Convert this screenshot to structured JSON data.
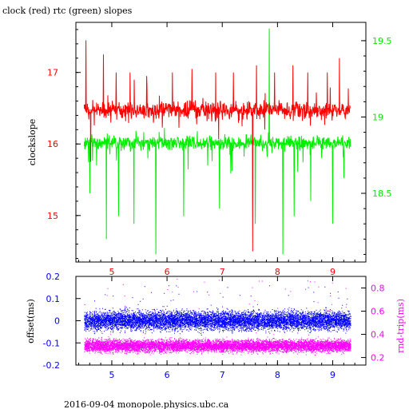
{
  "title": "clock (red) rtc (green) slopes",
  "footer": "2016-09-04 monopole.physics.ubc.ca",
  "colors": {
    "clock": "#ff0000",
    "rtc": "#00ee00",
    "offset": "#0000ff",
    "rndtrip": "#ff00ff",
    "axis": "#000000"
  },
  "chart_data": [
    {
      "type": "line",
      "title": "clock (red) rtc (green) slopes",
      "xlabel": "",
      "ylabel": "clockslope",
      "xlim": [
        4.35,
        9.6
      ],
      "xticks": [
        5,
        6,
        7,
        8,
        9
      ],
      "ylim_left": [
        14.35,
        17.7
      ],
      "yticks_left": [
        15,
        16,
        17
      ],
      "ylim_right": [
        18.05,
        19.62
      ],
      "yticks_right": [
        18.5,
        19,
        19.5
      ],
      "grid": false,
      "series": [
        {
          "name": "clock",
          "axis": "left",
          "x_range": [
            4.5,
            9.32
          ],
          "baseline": 16.47,
          "approx_band": [
            16.1,
            16.9
          ],
          "spikes": [
            {
              "x": 4.53,
              "y": 17.45
            },
            {
              "x": 4.62,
              "y": 15.75
            },
            {
              "x": 4.85,
              "y": 17.25
            },
            {
              "x": 5.08,
              "y": 17.0
            },
            {
              "x": 5.33,
              "y": 17.0
            },
            {
              "x": 5.63,
              "y": 16.95
            },
            {
              "x": 6.1,
              "y": 17.0
            },
            {
              "x": 6.45,
              "y": 17.05
            },
            {
              "x": 6.88,
              "y": 17.0
            },
            {
              "x": 7.2,
              "y": 17.0
            },
            {
              "x": 7.55,
              "y": 14.5
            },
            {
              "x": 7.62,
              "y": 17.1
            },
            {
              "x": 7.95,
              "y": 17.0
            },
            {
              "x": 8.28,
              "y": 17.1
            },
            {
              "x": 8.55,
              "y": 17.0
            },
            {
              "x": 8.9,
              "y": 17.0
            },
            {
              "x": 9.12,
              "y": 17.2
            }
          ]
        },
        {
          "name": "rtc",
          "axis": "right",
          "x_range": [
            4.5,
            9.32
          ],
          "baseline": 18.83,
          "approx_band": [
            18.55,
            18.95
          ],
          "spikes": [
            {
              "x": 4.6,
              "y": 18.5
            },
            {
              "x": 4.9,
              "y": 18.2
            },
            {
              "x": 5.12,
              "y": 18.35
            },
            {
              "x": 5.4,
              "y": 18.3
            },
            {
              "x": 5.8,
              "y": 18.1
            },
            {
              "x": 6.3,
              "y": 18.35
            },
            {
              "x": 6.95,
              "y": 18.4
            },
            {
              "x": 7.6,
              "y": 18.3
            },
            {
              "x": 7.85,
              "y": 19.58
            },
            {
              "x": 8.1,
              "y": 18.1
            },
            {
              "x": 8.3,
              "y": 18.35
            },
            {
              "x": 8.6,
              "y": 18.45
            },
            {
              "x": 9.0,
              "y": 18.3
            },
            {
              "x": 9.2,
              "y": 18.6
            }
          ]
        }
      ]
    },
    {
      "type": "scatter",
      "xlabel": "",
      "ylabel_left": "offset(ms)",
      "ylabel_right": "rnd-trip(ms)",
      "xlim": [
        4.35,
        9.6
      ],
      "xticks": [
        5,
        6,
        7,
        8,
        9
      ],
      "ylim_left": [
        -0.2,
        0.2
      ],
      "yticks_left": [
        -0.2,
        -0.1,
        0,
        0.1,
        0.2
      ],
      "ylim_right": [
        0.135,
        0.9
      ],
      "yticks_right": [
        0.2,
        0.4,
        0.6,
        0.8
      ],
      "grid": false,
      "series": [
        {
          "name": "offset",
          "axis": "left",
          "x_range": [
            4.5,
            9.32
          ],
          "center": 0.0,
          "spread": 0.04,
          "outlier_max": 0.16
        },
        {
          "name": "rnd-trip",
          "axis": "right",
          "x_range": [
            4.5,
            9.32
          ],
          "center": 0.3,
          "spread": 0.05,
          "outlier_max": 0.88
        }
      ]
    }
  ]
}
